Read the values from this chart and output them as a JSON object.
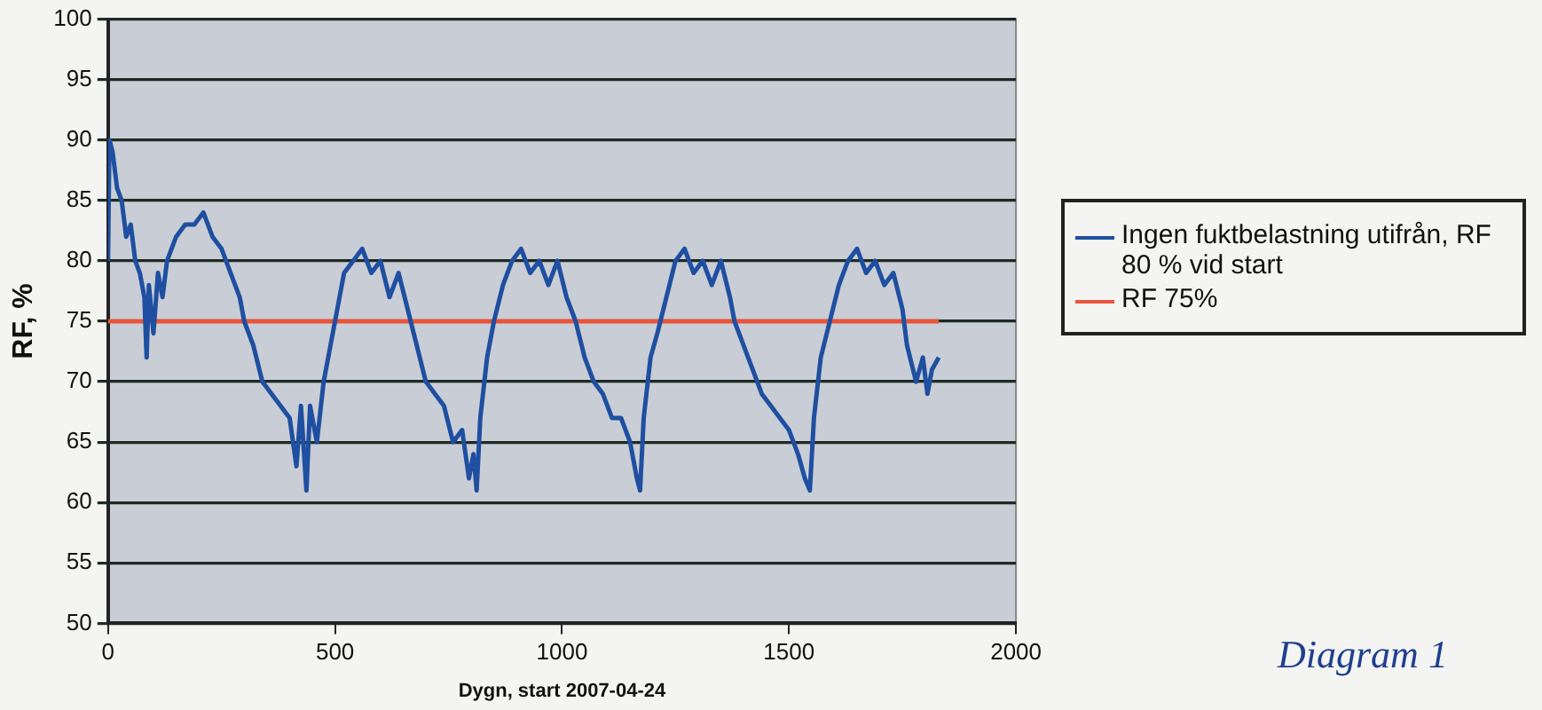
{
  "chart_data": {
    "type": "line",
    "xlabel": "Dygn, start 2007-04-24",
    "ylabel": "RF, %",
    "xlim": [
      0,
      2000
    ],
    "xticks": [
      0,
      500,
      1000,
      1500,
      2000
    ],
    "ylim": [
      50,
      100
    ],
    "yticks": [
      50,
      55,
      60,
      65,
      70,
      75,
      80,
      85,
      90,
      95,
      100
    ],
    "grid": "y",
    "legend": "right",
    "marker": "none",
    "line_style": "solid",
    "annotations": [
      "Diagram 1"
    ],
    "series": [
      {
        "name": "Ingen fuktbelastning utifrån, RF 80 % vid start",
        "color": "#1f4fa0",
        "x": [
          0,
          3,
          10,
          20,
          30,
          40,
          50,
          60,
          70,
          80,
          85,
          90,
          100,
          110,
          120,
          130,
          150,
          170,
          190,
          210,
          230,
          250,
          270,
          290,
          300,
          320,
          340,
          360,
          380,
          400,
          415,
          425,
          437,
          445,
          460,
          475,
          490,
          505,
          520,
          540,
          560,
          580,
          600,
          620,
          640,
          660,
          680,
          700,
          720,
          740,
          760,
          780,
          795,
          805,
          812,
          820,
          835,
          850,
          870,
          890,
          910,
          930,
          950,
          970,
          990,
          1010,
          1030,
          1050,
          1070,
          1090,
          1110,
          1130,
          1150,
          1165,
          1172,
          1180,
          1195,
          1210,
          1230,
          1250,
          1270,
          1290,
          1310,
          1330,
          1350,
          1370,
          1380,
          1400,
          1420,
          1440,
          1460,
          1480,
          1500,
          1520,
          1535,
          1546,
          1555,
          1570,
          1590,
          1610,
          1630,
          1650,
          1670,
          1690,
          1710,
          1730,
          1750,
          1760,
          1780,
          1795,
          1805,
          1815,
          1830
        ],
        "values": [
          80,
          90,
          89,
          86,
          85,
          82,
          83,
          80,
          79,
          77,
          72,
          78,
          74,
          79,
          77,
          80,
          82,
          83,
          83,
          84,
          82,
          81,
          79,
          77,
          75,
          73,
          70,
          69,
          68,
          67,
          63,
          68,
          61,
          68,
          65,
          70,
          73,
          76,
          79,
          80,
          81,
          79,
          80,
          77,
          79,
          76,
          73,
          70,
          69,
          68,
          65,
          66,
          62,
          64,
          61,
          67,
          72,
          75,
          78,
          80,
          81,
          79,
          80,
          78,
          80,
          77,
          75,
          72,
          70,
          69,
          67,
          67,
          65,
          62,
          61,
          67,
          72,
          74,
          77,
          80,
          81,
          79,
          80,
          78,
          80,
          77,
          75,
          73,
          71,
          69,
          68,
          67,
          66,
          64,
          62,
          61,
          67,
          72,
          75,
          78,
          80,
          81,
          79,
          80,
          78,
          79,
          76,
          73,
          70,
          72,
          69,
          71,
          72
        ]
      },
      {
        "name": "RF 75%",
        "color": "#e8553a",
        "x": [
          0,
          1830
        ],
        "values": [
          75,
          75
        ]
      }
    ]
  }
}
